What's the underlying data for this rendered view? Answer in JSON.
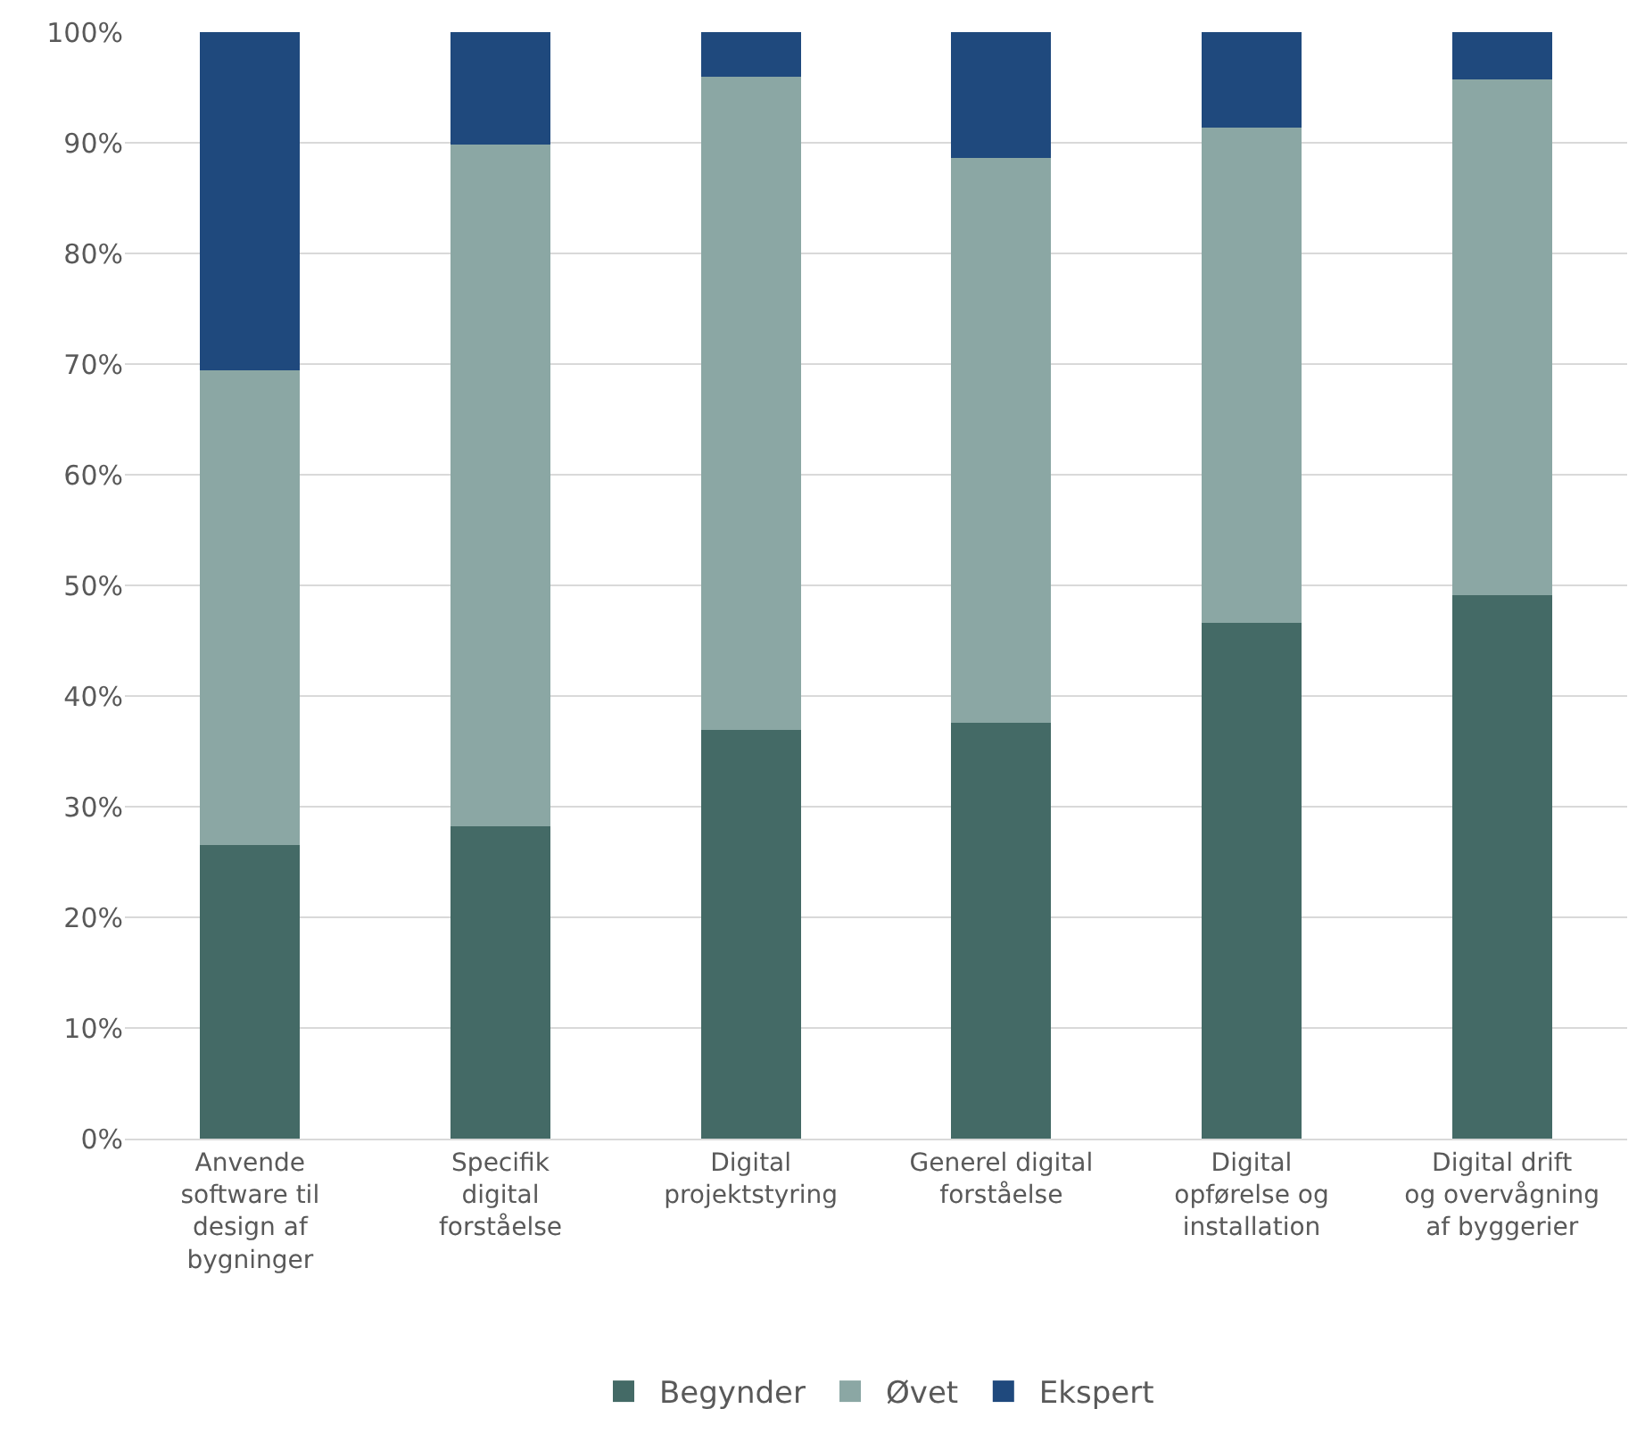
{
  "chart_data": {
    "type": "bar",
    "stacked": true,
    "categories": [
      "Anvende software til design af bygninger",
      "Specifik digital forståelse",
      "Digital projektstyring",
      "Generel digital forståelse",
      "Digital opførelse og installation",
      "Digital drift og overvågning af byggerier"
    ],
    "series": [
      {
        "name": "Begynder",
        "color": "#446a66",
        "values": [
          26.5,
          28.2,
          36.9,
          37.6,
          46.6,
          49.1
        ]
      },
      {
        "name": "Øvet",
        "color": "#8ba7a4",
        "values": [
          42.9,
          61.6,
          59.1,
          51.0,
          44.8,
          46.6
        ]
      },
      {
        "name": "Ekspert",
        "color": "#1f497d",
        "values": [
          30.6,
          10.2,
          4.0,
          11.4,
          8.6,
          4.3
        ]
      }
    ],
    "ylim": [
      0,
      100
    ],
    "yticks": [
      {
        "value": 0,
        "label": "0%"
      },
      {
        "value": 10,
        "label": "10%"
      },
      {
        "value": 20,
        "label": "20%"
      },
      {
        "value": 30,
        "label": "30%"
      },
      {
        "value": 40,
        "label": "40%"
      },
      {
        "value": 50,
        "label": "50%"
      },
      {
        "value": 60,
        "label": "60%"
      },
      {
        "value": 70,
        "label": "70%"
      },
      {
        "value": 80,
        "label": "80%"
      },
      {
        "value": 90,
        "label": "90%"
      },
      {
        "value": 100,
        "label": "100%"
      }
    ],
    "grid": "y",
    "legend": "bottom"
  }
}
